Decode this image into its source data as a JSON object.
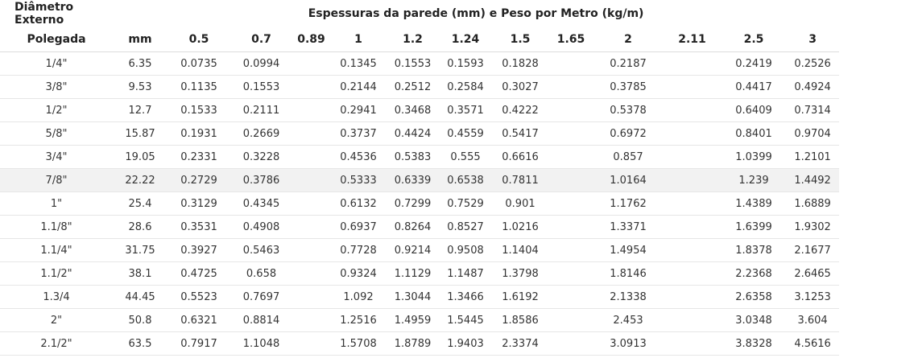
{
  "table": {
    "group_header_left": "Diâmetro Externo",
    "group_header_right": "Espessuras da parede (mm) e Peso por Metro (kg/m)",
    "columns": [
      "Polegada",
      "mm",
      "0.5",
      "0.7",
      "0.89",
      "1",
      "1.2",
      "1.24",
      "1.5",
      "1.65",
      "2",
      "2.11",
      "2.5",
      "3"
    ],
    "highlighted_row": 5,
    "rows": [
      [
        "1/4\"",
        "6.35",
        "0.0735",
        "0.0994",
        "",
        "0.1345",
        "0.1553",
        "0.1593",
        "0.1828",
        "",
        "0.2187",
        "",
        "0.2419",
        "0.2526"
      ],
      [
        "3/8\"",
        "9.53",
        "0.1135",
        "0.1553",
        "",
        "0.2144",
        "0.2512",
        "0.2584",
        "0.3027",
        "",
        "0.3785",
        "",
        "0.4417",
        "0.4924"
      ],
      [
        "1/2\"",
        "12.7",
        "0.1533",
        "0.2111",
        "",
        "0.2941",
        "0.3468",
        "0.3571",
        "0.4222",
        "",
        "0.5378",
        "",
        "0.6409",
        "0.7314"
      ],
      [
        "5/8\"",
        "15.87",
        "0.1931",
        "0.2669",
        "",
        "0.3737",
        "0.4424",
        "0.4559",
        "0.5417",
        "",
        "0.6972",
        "",
        "0.8401",
        "0.9704"
      ],
      [
        "3/4\"",
        "19.05",
        "0.2331",
        "0.3228",
        "",
        "0.4536",
        "0.5383",
        "0.555",
        "0.6616",
        "",
        "0.857",
        "",
        "1.0399",
        "1.2101"
      ],
      [
        "7/8\"",
        "22.22",
        "0.2729",
        "0.3786",
        "",
        "0.5333",
        "0.6339",
        "0.6538",
        "0.7811",
        "",
        "1.0164",
        "",
        "1.239",
        "1.4492"
      ],
      [
        "1\"",
        "25.4",
        "0.3129",
        "0.4345",
        "",
        "0.6132",
        "0.7299",
        "0.7529",
        "0.901",
        "",
        "1.1762",
        "",
        "1.4389",
        "1.6889"
      ],
      [
        "1.1/8\"",
        "28.6",
        "0.3531",
        "0.4908",
        "",
        "0.6937",
        "0.8264",
        "0.8527",
        "1.0216",
        "",
        "1.3371",
        "",
        "1.6399",
        "1.9302"
      ],
      [
        "1.1/4\"",
        "31.75",
        "0.3927",
        "0.5463",
        "",
        "0.7728",
        "0.9214",
        "0.9508",
        "1.1404",
        "",
        "1.4954",
        "",
        "1.8378",
        "2.1677"
      ],
      [
        "1.1/2\"",
        "38.1",
        "0.4725",
        "0.658",
        "",
        "0.9324",
        "1.1129",
        "1.1487",
        "1.3798",
        "",
        "1.8146",
        "",
        "2.2368",
        "2.6465"
      ],
      [
        "1.3/4",
        "44.45",
        "0.5523",
        "0.7697",
        "",
        "1.092",
        "1.3044",
        "1.3466",
        "1.6192",
        "",
        "2.1338",
        "",
        "2.6358",
        "3.1253"
      ],
      [
        "2\"",
        "50.8",
        "0.6321",
        "0.8814",
        "",
        "1.2516",
        "1.4959",
        "1.5445",
        "1.8586",
        "",
        "2.453",
        "",
        "3.0348",
        "3.604"
      ],
      [
        "2.1/2\"",
        "63.5",
        "0.7917",
        "1.1048",
        "",
        "1.5708",
        "1.8789",
        "1.9403",
        "2.3374",
        "",
        "3.0913",
        "",
        "3.8328",
        "4.5616"
      ]
    ]
  }
}
